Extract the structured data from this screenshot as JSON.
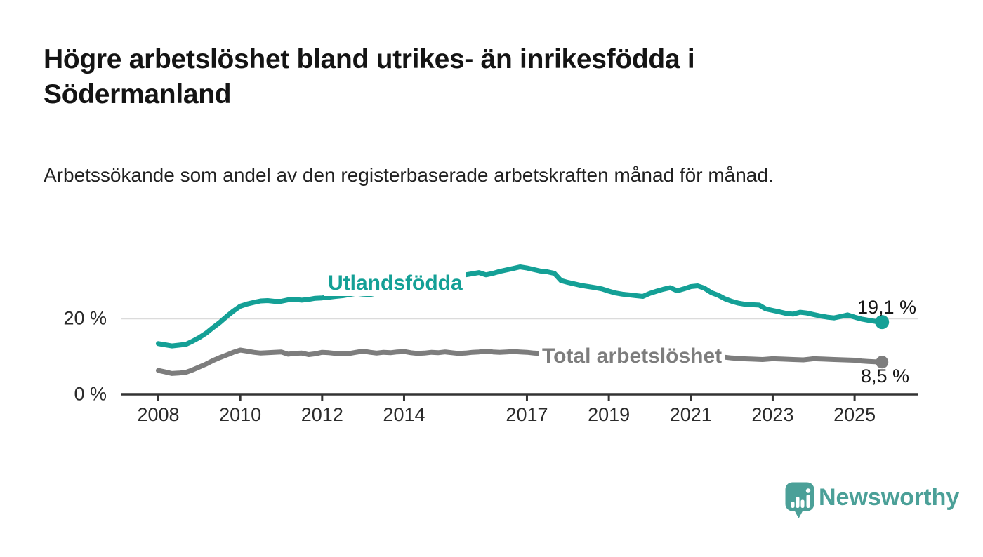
{
  "header": {
    "title": "Högre arbetslöshet bland utrikes- än inrikesfödda i Södermanland",
    "subtitle": "Arbetssökande som andel av den registerbaserade arbetskraften månad för månad."
  },
  "chart_data": {
    "type": "line",
    "title": "Högre arbetslöshet bland utrikes- än inrikesfödda i Södermanland",
    "subtitle": "Arbetssökande som andel av den registerbaserade arbetskraften månad för månad.",
    "xlabel": "",
    "ylabel": "",
    "ylim": [
      0,
      36
    ],
    "xlim": [
      2007.1,
      2026.5
    ],
    "grid": "single horizontal gridline at 20 %",
    "legend_position": "inline labels on lines",
    "y_ticks": [
      {
        "value": 0,
        "label": "0 %"
      },
      {
        "value": 20,
        "label": "20 %"
      }
    ],
    "x_ticks": [
      {
        "year": 2008,
        "label": "2008"
      },
      {
        "year": 2010,
        "label": "2010"
      },
      {
        "year": 2012,
        "label": "2012"
      },
      {
        "year": 2014,
        "label": "2014"
      },
      {
        "year": 2017,
        "label": "2017"
      },
      {
        "year": 2019,
        "label": "2019"
      },
      {
        "year": 2021,
        "label": "2021"
      },
      {
        "year": 2023,
        "label": "2023"
      },
      {
        "year": 2025,
        "label": "2025"
      }
    ],
    "colors": {
      "axis": "#333333",
      "grid": "#DBDBDB"
    },
    "series": [
      {
        "id": "utlandsfodda",
        "name": "Utlandsfödda",
        "color": "#14A096",
        "end_label": "19,1 %",
        "end_value": 19.1,
        "points": [
          [
            2008.0,
            13.4
          ],
          [
            2008.17,
            13.1
          ],
          [
            2008.33,
            12.8
          ],
          [
            2008.5,
            13.0
          ],
          [
            2008.67,
            13.2
          ],
          [
            2008.83,
            14.0
          ],
          [
            2009.0,
            15.0
          ],
          [
            2009.17,
            16.2
          ],
          [
            2009.33,
            17.6
          ],
          [
            2009.5,
            19.0
          ],
          [
            2009.67,
            20.6
          ],
          [
            2009.83,
            22.0
          ],
          [
            2010.0,
            23.3
          ],
          [
            2010.17,
            23.9
          ],
          [
            2010.33,
            24.3
          ],
          [
            2010.5,
            24.7
          ],
          [
            2010.67,
            24.8
          ],
          [
            2010.83,
            24.6
          ],
          [
            2011.0,
            24.6
          ],
          [
            2011.17,
            25.0
          ],
          [
            2011.33,
            25.1
          ],
          [
            2011.5,
            24.9
          ],
          [
            2011.67,
            25.1
          ],
          [
            2011.83,
            25.4
          ],
          [
            2012.0,
            25.5
          ],
          [
            2012.17,
            25.7
          ],
          [
            2012.33,
            25.9
          ],
          [
            2012.5,
            26.1
          ],
          [
            2012.67,
            26.4
          ],
          [
            2012.83,
            26.7
          ],
          [
            2013.0,
            26.5
          ],
          [
            2013.17,
            26.4
          ],
          [
            2013.33,
            26.8
          ],
          [
            2013.5,
            27.2
          ],
          [
            2013.67,
            27.0
          ],
          [
            2013.83,
            27.4
          ],
          [
            2014.0,
            27.7
          ],
          [
            2014.17,
            27.9
          ],
          [
            2014.33,
            27.8
          ],
          [
            2014.5,
            28.3
          ],
          [
            2014.67,
            28.7
          ],
          [
            2014.83,
            29.2
          ],
          [
            2015.0,
            29.8
          ],
          [
            2015.17,
            30.6
          ],
          [
            2015.33,
            31.2
          ],
          [
            2015.5,
            31.6
          ],
          [
            2015.67,
            31.9
          ],
          [
            2015.83,
            32.2
          ],
          [
            2016.0,
            31.6
          ],
          [
            2016.17,
            32.0
          ],
          [
            2016.33,
            32.5
          ],
          [
            2016.5,
            32.9
          ],
          [
            2016.67,
            33.3
          ],
          [
            2016.83,
            33.7
          ],
          [
            2017.0,
            33.4
          ],
          [
            2017.17,
            33.0
          ],
          [
            2017.33,
            32.6
          ],
          [
            2017.5,
            32.4
          ],
          [
            2017.67,
            32.0
          ],
          [
            2017.83,
            30.1
          ],
          [
            2018.0,
            29.6
          ],
          [
            2018.17,
            29.2
          ],
          [
            2018.33,
            28.8
          ],
          [
            2018.5,
            28.5
          ],
          [
            2018.67,
            28.2
          ],
          [
            2018.83,
            27.9
          ],
          [
            2019.0,
            27.3
          ],
          [
            2019.17,
            26.8
          ],
          [
            2019.33,
            26.5
          ],
          [
            2019.5,
            26.3
          ],
          [
            2019.67,
            26.1
          ],
          [
            2019.83,
            25.9
          ],
          [
            2020.0,
            26.7
          ],
          [
            2020.17,
            27.3
          ],
          [
            2020.33,
            27.8
          ],
          [
            2020.5,
            28.2
          ],
          [
            2020.67,
            27.4
          ],
          [
            2020.83,
            27.9
          ],
          [
            2021.0,
            28.5
          ],
          [
            2021.17,
            28.7
          ],
          [
            2021.33,
            28.1
          ],
          [
            2021.5,
            26.9
          ],
          [
            2021.67,
            26.2
          ],
          [
            2021.83,
            25.3
          ],
          [
            2022.0,
            24.6
          ],
          [
            2022.17,
            24.1
          ],
          [
            2022.33,
            23.8
          ],
          [
            2022.5,
            23.7
          ],
          [
            2022.67,
            23.6
          ],
          [
            2022.83,
            22.6
          ],
          [
            2023.0,
            22.2
          ],
          [
            2023.17,
            21.8
          ],
          [
            2023.33,
            21.4
          ],
          [
            2023.5,
            21.2
          ],
          [
            2023.67,
            21.7
          ],
          [
            2023.83,
            21.5
          ],
          [
            2024.0,
            21.1
          ],
          [
            2024.17,
            20.7
          ],
          [
            2024.33,
            20.4
          ],
          [
            2024.5,
            20.2
          ],
          [
            2024.67,
            20.6
          ],
          [
            2024.83,
            21.0
          ],
          [
            2025.0,
            20.4
          ],
          [
            2025.17,
            19.9
          ],
          [
            2025.33,
            19.6
          ],
          [
            2025.5,
            19.3
          ],
          [
            2025.67,
            19.1
          ]
        ]
      },
      {
        "id": "total",
        "name": "Total arbetslöshet",
        "color": "#7D7D7D",
        "end_label": "8,5 %",
        "end_value": 8.5,
        "points": [
          [
            2008.0,
            6.3
          ],
          [
            2008.17,
            5.9
          ],
          [
            2008.33,
            5.5
          ],
          [
            2008.5,
            5.6
          ],
          [
            2008.67,
            5.8
          ],
          [
            2008.83,
            6.4
          ],
          [
            2009.0,
            7.2
          ],
          [
            2009.17,
            8.0
          ],
          [
            2009.33,
            8.9
          ],
          [
            2009.5,
            9.7
          ],
          [
            2009.67,
            10.4
          ],
          [
            2009.83,
            11.1
          ],
          [
            2010.0,
            11.7
          ],
          [
            2010.17,
            11.4
          ],
          [
            2010.33,
            11.1
          ],
          [
            2010.5,
            10.9
          ],
          [
            2010.67,
            11.0
          ],
          [
            2010.83,
            11.1
          ],
          [
            2011.0,
            11.2
          ],
          [
            2011.17,
            10.6
          ],
          [
            2011.33,
            10.8
          ],
          [
            2011.5,
            10.9
          ],
          [
            2011.67,
            10.5
          ],
          [
            2011.83,
            10.7
          ],
          [
            2012.0,
            11.1
          ],
          [
            2012.17,
            11.0
          ],
          [
            2012.33,
            10.8
          ],
          [
            2012.5,
            10.7
          ],
          [
            2012.67,
            10.8
          ],
          [
            2012.83,
            11.1
          ],
          [
            2013.0,
            11.4
          ],
          [
            2013.17,
            11.1
          ],
          [
            2013.33,
            10.9
          ],
          [
            2013.5,
            11.1
          ],
          [
            2013.67,
            11.0
          ],
          [
            2013.83,
            11.2
          ],
          [
            2014.0,
            11.3
          ],
          [
            2014.17,
            11.0
          ],
          [
            2014.33,
            10.8
          ],
          [
            2014.5,
            10.9
          ],
          [
            2014.67,
            11.1
          ],
          [
            2014.83,
            11.0
          ],
          [
            2015.0,
            11.2
          ],
          [
            2015.17,
            11.0
          ],
          [
            2015.33,
            10.8
          ],
          [
            2015.5,
            10.9
          ],
          [
            2015.67,
            11.1
          ],
          [
            2015.83,
            11.2
          ],
          [
            2016.0,
            11.4
          ],
          [
            2016.17,
            11.2
          ],
          [
            2016.33,
            11.1
          ],
          [
            2016.5,
            11.2
          ],
          [
            2016.67,
            11.3
          ],
          [
            2016.83,
            11.2
          ],
          [
            2017.0,
            11.1
          ],
          [
            2017.17,
            10.9
          ],
          [
            2017.33,
            10.8
          ],
          [
            2017.5,
            10.7
          ],
          [
            2017.67,
            10.6
          ],
          [
            2017.83,
            10.5
          ],
          [
            2018.0,
            10.6
          ],
          [
            2018.25,
            10.4
          ],
          [
            2018.5,
            10.3
          ],
          [
            2018.75,
            10.2
          ],
          [
            2019.0,
            10.2
          ],
          [
            2019.25,
            10.1
          ],
          [
            2019.5,
            10.0
          ],
          [
            2019.75,
            10.2
          ],
          [
            2020.0,
            10.4
          ],
          [
            2020.25,
            11.0
          ],
          [
            2020.5,
            11.4
          ],
          [
            2020.75,
            11.2
          ],
          [
            2021.0,
            11.0
          ],
          [
            2021.25,
            10.6
          ],
          [
            2021.5,
            10.3
          ],
          [
            2021.75,
            9.9
          ],
          [
            2022.0,
            9.6
          ],
          [
            2022.25,
            9.4
          ],
          [
            2022.5,
            9.3
          ],
          [
            2022.75,
            9.2
          ],
          [
            2023.0,
            9.4
          ],
          [
            2023.25,
            9.3
          ],
          [
            2023.5,
            9.2
          ],
          [
            2023.75,
            9.1
          ],
          [
            2024.0,
            9.4
          ],
          [
            2024.25,
            9.3
          ],
          [
            2024.5,
            9.2
          ],
          [
            2024.75,
            9.1
          ],
          [
            2025.0,
            9.0
          ],
          [
            2025.17,
            8.8
          ],
          [
            2025.33,
            8.7
          ],
          [
            2025.5,
            8.6
          ],
          [
            2025.67,
            8.5
          ]
        ]
      }
    ]
  },
  "branding": {
    "logo_text": "Newsworthy",
    "logo_color": "#4BA098",
    "logo_icon": "speech-bubble-with-bar-chart-and-exclamation"
  }
}
